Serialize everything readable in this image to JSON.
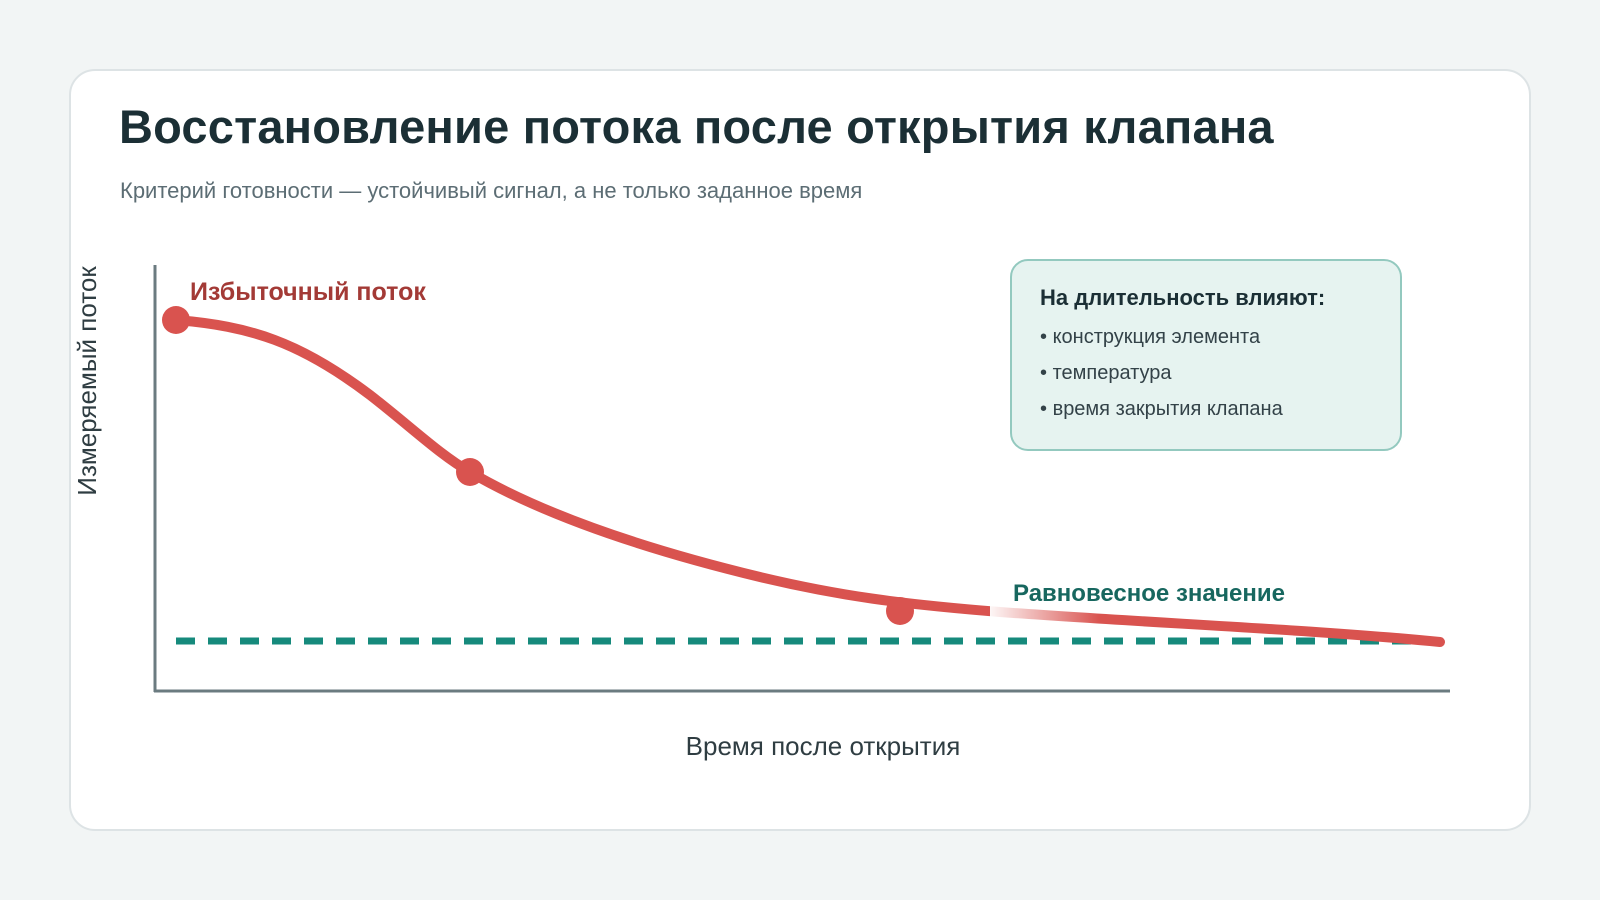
{
  "title": "Восстановление потока после открытия клапана",
  "subtitle": "Критерий готовности — устойчивый сигнал, а не только заданное время",
  "diagram": {
    "axes": {
      "x_label": "Время после открытия",
      "y_label": "Измеряемый поток"
    },
    "curve_label": "Избыточный поток",
    "equilibrium_label": "Равновесное значение",
    "colors": {
      "curve": "#d9534f",
      "equilibrium": "#168a7c",
      "axis": "#6b7b80"
    }
  },
  "note": {
    "heading": "На длительность влияют:",
    "items": [
      "конструкция элемента",
      "температура",
      "время закрытия клапана"
    ]
  }
}
